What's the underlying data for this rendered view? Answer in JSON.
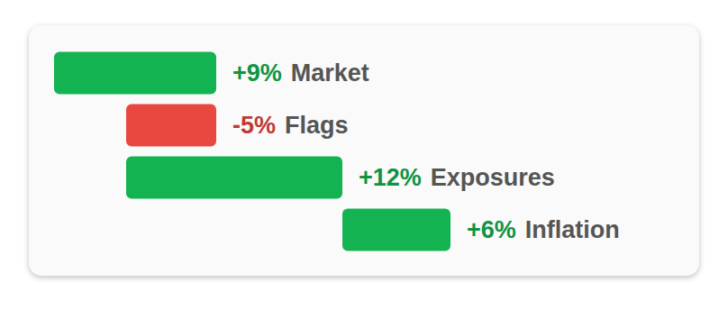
{
  "chart_data": {
    "type": "waterfall",
    "orientation": "horizontal",
    "categories": [
      "Market",
      "Flags",
      "Exposures",
      "Inflation"
    ],
    "values": [
      9,
      -5,
      12,
      6
    ],
    "value_labels": [
      "+9%",
      "-5%",
      "+12%",
      "+6%"
    ],
    "colors": [
      "#14b352",
      "#e8483f",
      "#14b352",
      "#14b352"
    ],
    "data_labels": true,
    "tick_labels": false,
    "grid": false
  }
}
